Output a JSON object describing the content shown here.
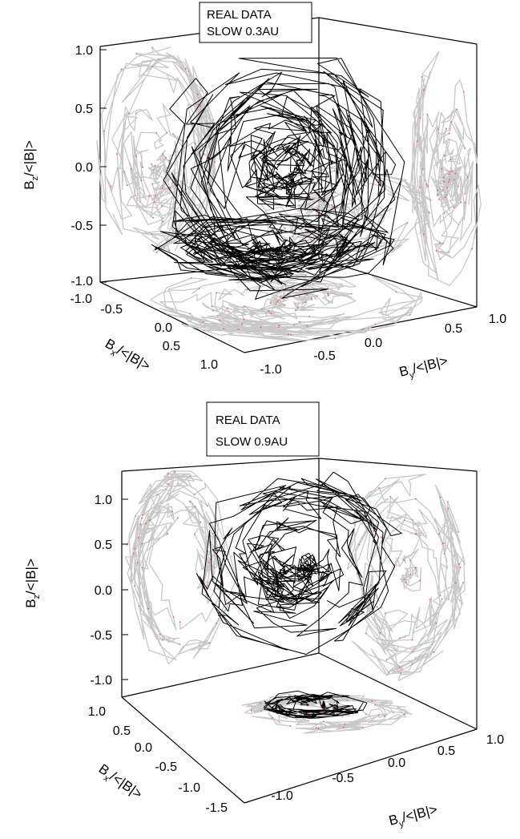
{
  "chart_data": [
    {
      "type": "line",
      "subtype": "3d-trajectory",
      "legend_lines": [
        "REAL DATA",
        "SLOW 0.3AU"
      ],
      "legend_placement": "top-center",
      "xlabel": {
        "main": "B",
        "sub": "x",
        "rest": "/<|B|>"
      },
      "ylabel": {
        "main": "B",
        "sub": "y",
        "rest": "/<|B|>"
      },
      "zlabel": {
        "main": "B",
        "sub": "z",
        "rest": "/<|B|>"
      },
      "x_ticks": [
        "-1.0",
        "-0.5",
        "0.0",
        "0.5",
        "1.0"
      ],
      "y_ticks": [
        "-1.0",
        "-0.5",
        "0.0",
        "0.5",
        "1.0"
      ],
      "z_ticks": [
        "1.0",
        "0.5",
        "0.0",
        "-0.5",
        "-1.0"
      ],
      "xlim": [
        -1.0,
        1.0
      ],
      "ylim": [
        -1.0,
        1.0
      ],
      "zlim": [
        -1.0,
        1.0
      ],
      "series": [
        {
          "role": "trajectory",
          "color": "#000000"
        },
        {
          "role": "projection",
          "color": "#c8c8c8"
        },
        {
          "role": "projection-points",
          "color": "#e06060"
        }
      ]
    },
    {
      "type": "line",
      "subtype": "3d-trajectory",
      "legend_lines": [
        "REAL DATA",
        "SLOW 0.9AU"
      ],
      "legend_placement": "top-center",
      "xlabel": {
        "main": "B",
        "sub": "x",
        "rest": "/<|B|>"
      },
      "ylabel": {
        "main": "B",
        "sub": "y",
        "rest": "/<|B|>"
      },
      "zlabel": {
        "main": "B",
        "sub": "z",
        "rest": "/<|B|>"
      },
      "x_ticks": [
        "1.0",
        "0.5",
        "0.0",
        "-0.5",
        "-1.0",
        "-1.5"
      ],
      "y_ticks": [
        "-1.0",
        "-0.5",
        "0.0",
        "0.5",
        "1.0"
      ],
      "z_ticks": [
        "1.0",
        "0.5",
        "0.0",
        "-0.5",
        "-1.0"
      ],
      "xlim": [
        -1.5,
        1.0
      ],
      "ylim": [
        -1.0,
        1.0
      ],
      "zlim": [
        -1.0,
        1.0
      ],
      "series": [
        {
          "role": "trajectory",
          "color": "#000000"
        },
        {
          "role": "projection",
          "color": "#c8c8c8"
        },
        {
          "role": "projection-points",
          "color": "#e06060"
        }
      ]
    }
  ]
}
